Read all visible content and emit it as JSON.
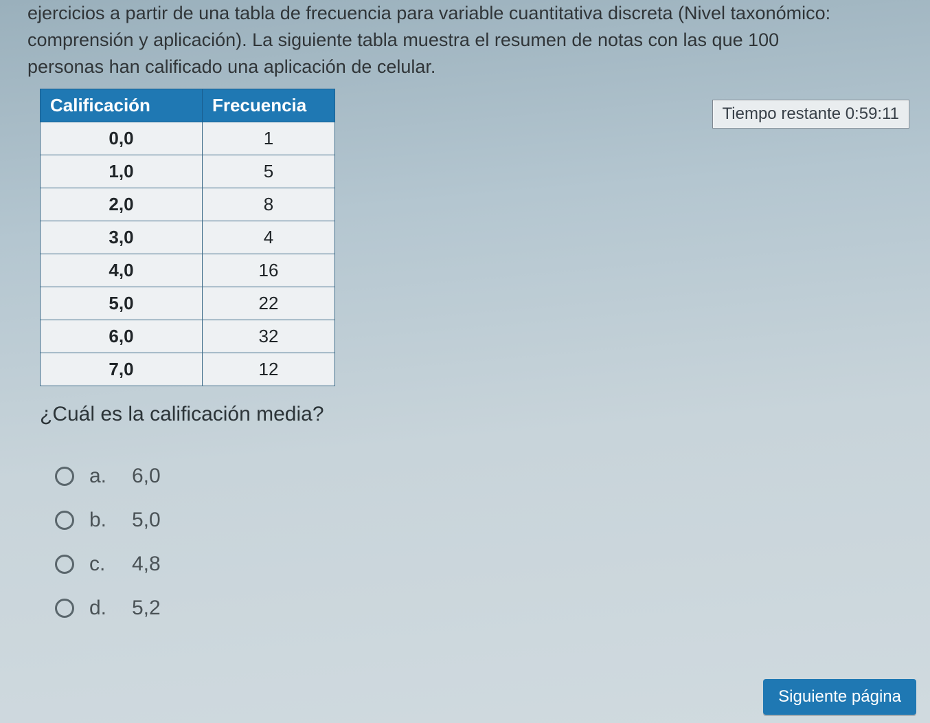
{
  "prompt": {
    "line1_prefix": "ejercicios a partir de una tabla de frecuencia para variable cuantitativa discreta (Nivel taxonómico:",
    "line2": "comprensión y aplicación). La siguiente tabla muestra el resumen de notas con las que 100",
    "line3": "personas han calificado una aplicación de celular."
  },
  "timer": {
    "label": "Tiempo restante 0:59:11"
  },
  "table": {
    "header_calificacion": "Calificación",
    "header_frecuencia": "Frecuencia",
    "header_bg": "#1f78b3",
    "header_fg": "#ffffff",
    "cell_bg": "#eef1f3",
    "border_color": "#3c6a88",
    "rows": [
      {
        "cal": "0,0",
        "freq": "1"
      },
      {
        "cal": "1,0",
        "freq": "5"
      },
      {
        "cal": "2,0",
        "freq": "8"
      },
      {
        "cal": "3,0",
        "freq": "4"
      },
      {
        "cal": "4,0",
        "freq": "16"
      },
      {
        "cal": "5,0",
        "freq": "22"
      },
      {
        "cal": "6,0",
        "freq": "32"
      },
      {
        "cal": "7,0",
        "freq": "12"
      }
    ]
  },
  "question": "¿Cuál es la calificación media?",
  "options": [
    {
      "letter": "a.",
      "text": "6,0"
    },
    {
      "letter": "b.",
      "text": "5,0"
    },
    {
      "letter": "c.",
      "text": "4,8"
    },
    {
      "letter": "d.",
      "text": "5,2"
    }
  ],
  "next_button": "Siguiente página",
  "colors": {
    "page_text": "#2c3438",
    "option_text": "#4a5256",
    "button_bg": "#1f78b3",
    "button_fg": "#ffffff",
    "timer_bg": "#e9edef",
    "timer_border": "#808890"
  }
}
